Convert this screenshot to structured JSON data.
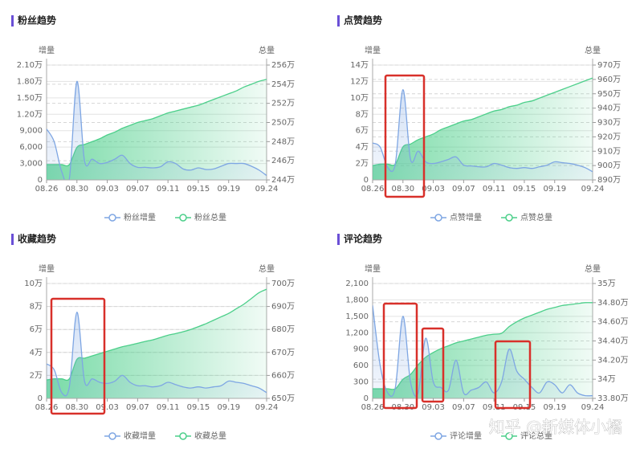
{
  "watermark": "知乎 @新媒体小橘",
  "chart_data": [
    {
      "type": "line",
      "title": "粉丝趋势",
      "ylabel": "增量",
      "y2label": "总量",
      "grid": true,
      "categories": [
        "08.26",
        null,
        null,
        null,
        "08.30",
        null,
        null,
        null,
        "09.03",
        null,
        null,
        null,
        "09.07",
        null,
        null,
        null,
        "09.11",
        null,
        null,
        null,
        "09.15",
        null,
        null,
        null,
        "09.19",
        null,
        null,
        null,
        null,
        "09.24"
      ],
      "ylim": [
        0,
        21000
      ],
      "yticks": [
        0,
        {
          "value": 3000,
          "label": "3,000"
        },
        {
          "value": 6000,
          "label": "6,000"
        },
        {
          "value": 9000,
          "label": "9,000"
        },
        {
          "value": 12000,
          "label": "1.20万"
        },
        {
          "value": 15000,
          "label": "1.50万"
        },
        {
          "value": 18000,
          "label": "1.80万"
        },
        {
          "value": 21000,
          "label": "2.10万"
        }
      ],
      "y2lim": [
        2440000,
        2560000
      ],
      "y2ticks": [
        {
          "value": 2440000,
          "label": "244万"
        },
        {
          "value": 2460000,
          "label": "246万"
        },
        {
          "value": 2480000,
          "label": "248万"
        },
        {
          "value": 2500000,
          "label": "250万"
        },
        {
          "value": 2520000,
          "label": "252万"
        },
        {
          "value": 2540000,
          "label": "254万"
        },
        {
          "value": 2560000,
          "label": "256万"
        }
      ],
      "series": [
        {
          "name": "粉丝增量",
          "color": "#7ea6e3",
          "values": [
            9300,
            7000,
            1500,
            200,
            18000,
            3500,
            3800,
            3000,
            3200,
            3800,
            4500,
            3000,
            2300,
            2300,
            2200,
            2400,
            3300,
            3000,
            2000,
            1800,
            2200,
            1900,
            2000,
            2500,
            3000,
            3000,
            3000,
            2500,
            1800,
            800
          ]
        },
        {
          "name": "粉丝总量",
          "color": "#4ccf8a",
          "axis": "y2",
          "values": [
            2456000,
            2456000,
            2456000,
            2456000,
            2474000,
            2477000,
            2480000,
            2483000,
            2487000,
            2490000,
            2494000,
            2497000,
            2500000,
            2502000,
            2504000,
            2507000,
            2510000,
            2512000,
            2514000,
            2516000,
            2518000,
            2521000,
            2524000,
            2527000,
            2530000,
            2533000,
            2537000,
            2540000,
            2543000,
            2545000
          ]
        }
      ]
    },
    {
      "type": "line",
      "title": "点赞趋势",
      "ylabel": "增量",
      "y2label": "总量",
      "grid": true,
      "categories": [
        "08.26",
        null,
        null,
        null,
        "08.30",
        null,
        null,
        null,
        "09.03",
        null,
        null,
        null,
        "09.07",
        null,
        null,
        null,
        "09.11",
        null,
        null,
        null,
        "09.15",
        null,
        null,
        null,
        "09.19",
        null,
        null,
        null,
        null,
        "09.24"
      ],
      "ylim": [
        0,
        140000
      ],
      "yticks": [
        0,
        {
          "value": 20000,
          "label": "2万"
        },
        {
          "value": 40000,
          "label": "4万"
        },
        {
          "value": 60000,
          "label": "6万"
        },
        {
          "value": 80000,
          "label": "8万"
        },
        {
          "value": 100000,
          "label": "10万"
        },
        {
          "value": 120000,
          "label": "12万"
        },
        {
          "value": 140000,
          "label": "14万"
        }
      ],
      "y2lim": [
        8900000,
        9700000
      ],
      "y2ticks": [
        {
          "value": 8900000,
          "label": "890万"
        },
        {
          "value": 9000000,
          "label": "900万"
        },
        {
          "value": 9100000,
          "label": "910万"
        },
        {
          "value": 9200000,
          "label": "920万"
        },
        {
          "value": 9300000,
          "label": "930万"
        },
        {
          "value": 9400000,
          "label": "940万"
        },
        {
          "value": 9500000,
          "label": "950万"
        },
        {
          "value": 9600000,
          "label": "960万"
        },
        {
          "value": 9700000,
          "label": "970万"
        }
      ],
      "series": [
        {
          "name": "点赞增量",
          "color": "#7ea6e3",
          "values": [
            45000,
            40000,
            15000,
            20000,
            110000,
            25000,
            35000,
            22000,
            20000,
            22000,
            25000,
            28000,
            18000,
            17000,
            16000,
            16000,
            20000,
            18000,
            15000,
            14000,
            15000,
            14000,
            16000,
            18000,
            22000,
            21000,
            20000,
            18000,
            15000,
            10000
          ]
        },
        {
          "name": "点赞总量",
          "color": "#4ccf8a",
          "axis": "y2",
          "values": [
            9000000,
            9010000,
            9010000,
            9010000,
            9130000,
            9150000,
            9180000,
            9200000,
            9220000,
            9250000,
            9270000,
            9290000,
            9310000,
            9320000,
            9340000,
            9360000,
            9380000,
            9390000,
            9410000,
            9420000,
            9440000,
            9450000,
            9470000,
            9490000,
            9510000,
            9530000,
            9550000,
            9570000,
            9590000,
            9610000
          ]
        }
      ]
    },
    {
      "type": "line",
      "title": "收藏趋势",
      "ylabel": "增量",
      "y2label": "总量",
      "grid": true,
      "categories": [
        "08.26",
        null,
        null,
        null,
        "08.30",
        null,
        null,
        null,
        "09.03",
        null,
        null,
        null,
        "09.07",
        null,
        null,
        null,
        "09.11",
        null,
        null,
        null,
        "09.15",
        null,
        null,
        null,
        "09.19",
        null,
        null,
        null,
        null,
        "09.24"
      ],
      "ylim": [
        0,
        100000
      ],
      "yticks": [
        0,
        {
          "value": 20000,
          "label": "2万"
        },
        {
          "value": 40000,
          "label": "4万"
        },
        {
          "value": 60000,
          "label": "6万"
        },
        {
          "value": 80000,
          "label": "8万"
        },
        {
          "value": 100000,
          "label": "10万"
        }
      ],
      "y2lim": [
        6500000,
        7000000
      ],
      "y2ticks": [
        {
          "value": 6500000,
          "label": "650万"
        },
        {
          "value": 6600000,
          "label": "660万"
        },
        {
          "value": 6700000,
          "label": "670万"
        },
        {
          "value": 6800000,
          "label": "680万"
        },
        {
          "value": 6900000,
          "label": "690万"
        },
        {
          "value": 7000000,
          "label": "700万"
        }
      ],
      "series": [
        {
          "name": "收藏增量",
          "color": "#7ea6e3",
          "values": [
            30000,
            25000,
            5000,
            10000,
            75000,
            15000,
            17000,
            14000,
            13000,
            15000,
            20000,
            14000,
            11000,
            11000,
            10000,
            11000,
            14000,
            12000,
            10000,
            9000,
            10000,
            9000,
            10000,
            11000,
            15000,
            14000,
            13000,
            11000,
            9000,
            5000
          ]
        },
        {
          "name": "收藏总量",
          "color": "#4ccf8a",
          "axis": "y2",
          "values": [
            6580000,
            6585000,
            6585000,
            6585000,
            6670000,
            6675000,
            6685000,
            6695000,
            6705000,
            6715000,
            6725000,
            6732000,
            6740000,
            6748000,
            6755000,
            6765000,
            6775000,
            6782000,
            6790000,
            6800000,
            6812000,
            6825000,
            6840000,
            6855000,
            6870000,
            6890000,
            6910000,
            6935000,
            6960000,
            6975000
          ]
        }
      ]
    },
    {
      "type": "line",
      "title": "评论趋势",
      "ylabel": "增量",
      "y2label": "总量",
      "grid": true,
      "categories": [
        "08.26",
        null,
        null,
        null,
        "08.30",
        null,
        null,
        null,
        "09.03",
        null,
        null,
        null,
        "09.07",
        null,
        null,
        null,
        "09.11",
        null,
        null,
        null,
        "09.15",
        null,
        null,
        null,
        "09.19",
        null,
        null,
        null,
        null,
        "09.24"
      ],
      "ylim": [
        0,
        2100
      ],
      "yticks": [
        0,
        300,
        600,
        900,
        {
          "value": 1200,
          "label": "1,200"
        },
        {
          "value": 1500,
          "label": "1,500"
        },
        {
          "value": 1800,
          "label": "1,800"
        },
        {
          "value": 2100,
          "label": "2,100"
        }
      ],
      "y2lim": [
        338000,
        350000
      ],
      "y2ticks": [
        {
          "value": 338000,
          "label": "33.80万"
        },
        {
          "value": 340000,
          "label": "34万"
        },
        {
          "value": 342000,
          "label": "34.20万"
        },
        {
          "value": 344000,
          "label": "34.40万"
        },
        {
          "value": 346000,
          "label": "34.60万"
        },
        {
          "value": 348000,
          "label": "34.80万"
        },
        {
          "value": 350000,
          "label": "35万"
        }
      ],
      "series": [
        {
          "name": "评论增量",
          "color": "#7ea6e3",
          "values": [
            1700,
            600,
            100,
            200,
            1500,
            300,
            100,
            1100,
            300,
            200,
            150,
            700,
            100,
            150,
            200,
            300,
            100,
            300,
            900,
            500,
            350,
            200,
            100,
            300,
            250,
            100,
            250,
            100,
            50,
            50
          ]
        },
        {
          "name": "评论总量",
          "color": "#4ccf8a",
          "axis": "y2",
          "values": [
            339000,
            339000,
            339000,
            339000,
            340000,
            340500,
            341500,
            342300,
            342800,
            343200,
            343500,
            343800,
            344000,
            344200,
            344400,
            344600,
            344700,
            344800,
            345500,
            346000,
            346400,
            346700,
            347000,
            347300,
            347500,
            347700,
            347800,
            347900,
            348000,
            348000
          ]
        }
      ]
    }
  ]
}
